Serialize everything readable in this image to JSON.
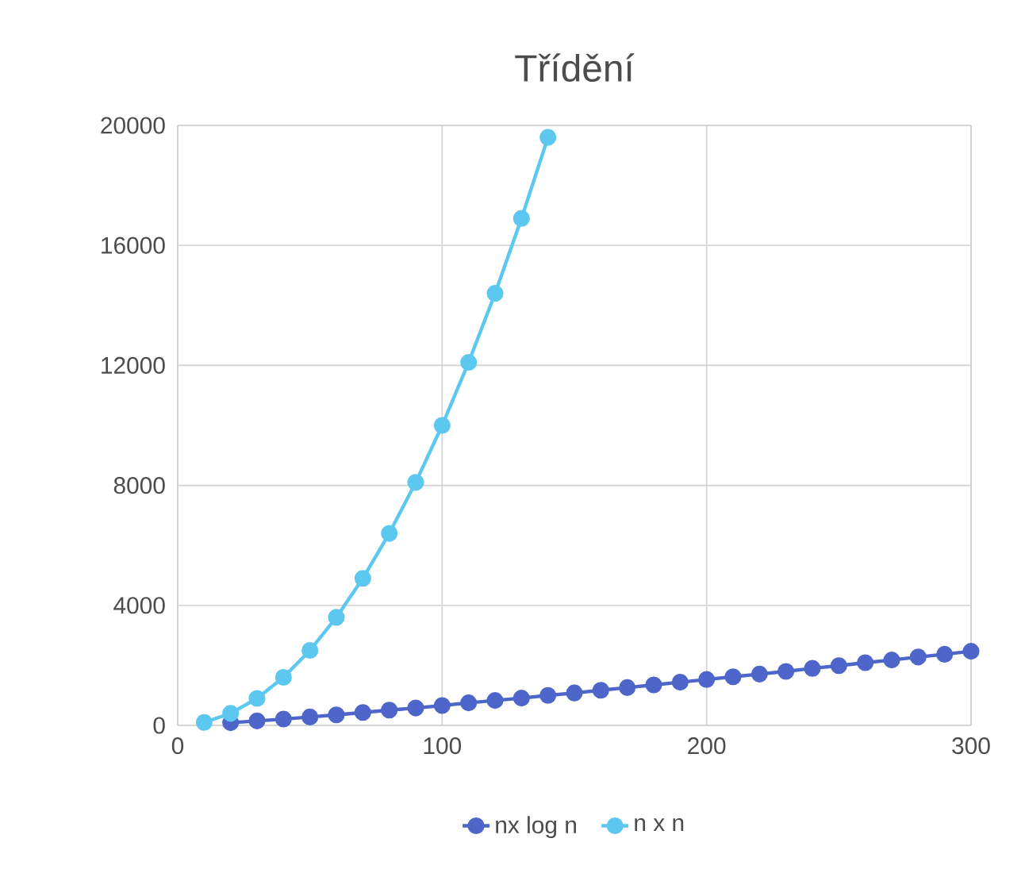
{
  "chart_data": {
    "type": "line",
    "title": "Třídění",
    "xlim": [
      0,
      300
    ],
    "xticks": [
      0,
      100,
      200,
      300
    ],
    "ylim": [
      0,
      20000
    ],
    "yticks": [
      0,
      4000,
      8000,
      12000,
      16000,
      20000
    ],
    "grid": true,
    "legend": "bottom",
    "marker": "circle",
    "line_style": "solid",
    "series": [
      {
        "name": "nx log n",
        "color": "#4e65c9",
        "x": [
          20,
          30,
          40,
          50,
          60,
          70,
          80,
          90,
          100,
          110,
          120,
          130,
          140,
          150,
          160,
          170,
          180,
          190,
          200,
          210,
          220,
          230,
          240,
          250,
          260,
          270,
          280,
          290,
          300
        ],
        "values": [
          90,
          150,
          210,
          280,
          350,
          430,
          510,
          580,
          660,
          750,
          830,
          910,
          1000,
          1080,
          1170,
          1260,
          1350,
          1440,
          1530,
          1620,
          1710,
          1800,
          1900,
          1990,
          2090,
          2180,
          2280,
          2370,
          2470
        ]
      },
      {
        "name": "n x n",
        "color": "#5cc8f0",
        "x": [
          10,
          20,
          30,
          40,
          50,
          60,
          70,
          80,
          90,
          100,
          110,
          120,
          130,
          140
        ],
        "values": [
          100,
          400,
          900,
          1600,
          2500,
          3600,
          4900,
          6400,
          8100,
          10000,
          12100,
          14400,
          16900,
          19600
        ]
      }
    ]
  }
}
